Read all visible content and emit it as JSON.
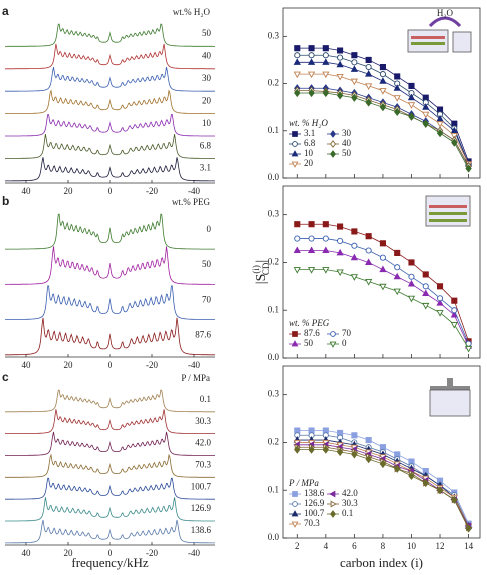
{
  "chart_data": [
    {
      "type": "spectra",
      "panel": "a",
      "legend_title": "wt.% H₂O",
      "series": [
        {
          "name": "50",
          "color": "#3d7a2e"
        },
        {
          "name": "40",
          "color": "#b03030"
        },
        {
          "name": "30",
          "color": "#3a5fb0"
        },
        {
          "name": "20",
          "color": "#a0702a"
        },
        {
          "name": "10",
          "color": "#8a2ab0"
        },
        {
          "name": "6.8",
          "color": "#4a5a2a"
        },
        {
          "name": "3.1",
          "color": "#1a1a3a"
        }
      ],
      "xlim": [
        50,
        -50
      ],
      "xticks": [
        40,
        20,
        0,
        -20,
        -40
      ]
    },
    {
      "type": "spectra",
      "panel": "b",
      "legend_title": "wt.% PEG",
      "series": [
        {
          "name": "0",
          "color": "#3d7a2e"
        },
        {
          "name": "50",
          "color": "#a020a0"
        },
        {
          "name": "70",
          "color": "#3a5fb0"
        },
        {
          "name": "87.6",
          "color": "#8a1a1a"
        }
      ],
      "xlim": [
        50,
        -50
      ],
      "xticks": [
        40,
        20,
        0,
        -20,
        -40
      ]
    },
    {
      "type": "spectra",
      "panel": "c",
      "legend_title": "P / MPa",
      "series": [
        {
          "name": "0.1",
          "color": "#a08050"
        },
        {
          "name": "30.3",
          "color": "#a03030"
        },
        {
          "name": "42.0",
          "color": "#702050"
        },
        {
          "name": "70.3",
          "color": "#8a6a30"
        },
        {
          "name": "100.7",
          "color": "#2a4a9a"
        },
        {
          "name": "126.9",
          "color": "#3a8a8a"
        },
        {
          "name": "138.6",
          "color": "#5a7aaa"
        }
      ],
      "xlim": [
        50,
        -50
      ],
      "xticks": [
        40,
        20,
        0,
        -20,
        -40
      ],
      "xlabel": "frequency/kHz"
    },
    {
      "type": "line",
      "legend_title": "wt. % H₂O",
      "legend": "lower left",
      "inset_label": "H₂O",
      "x": [
        2,
        3,
        4,
        5,
        6,
        7,
        8,
        9,
        10,
        11,
        12,
        13,
        14
      ],
      "series": [
        {
          "name": "3.1",
          "color": "#1a1a6a",
          "marker": "square",
          "filled": true,
          "values": [
            0.275,
            0.275,
            0.275,
            0.27,
            0.26,
            0.25,
            0.235,
            0.215,
            0.195,
            0.17,
            0.145,
            0.115,
            0.035
          ]
        },
        {
          "name": "6.8",
          "color": "#2a4a6a",
          "marker": "circle",
          "filled": false,
          "values": [
            0.26,
            0.26,
            0.26,
            0.255,
            0.245,
            0.235,
            0.22,
            0.2,
            0.18,
            0.16,
            0.135,
            0.105,
            0.03
          ]
        },
        {
          "name": "10",
          "color": "#1a2a7a",
          "marker": "triangle-up",
          "filled": true,
          "values": [
            0.245,
            0.245,
            0.245,
            0.24,
            0.23,
            0.22,
            0.205,
            0.19,
            0.17,
            0.15,
            0.125,
            0.1,
            0.03
          ]
        },
        {
          "name": "20",
          "color": "#c08050",
          "marker": "triangle-down",
          "filled": false,
          "values": [
            0.22,
            0.22,
            0.22,
            0.215,
            0.205,
            0.195,
            0.185,
            0.17,
            0.155,
            0.135,
            0.115,
            0.09,
            0.03
          ]
        },
        {
          "name": "30",
          "color": "#2a3a8a",
          "marker": "diamond",
          "filled": true,
          "values": [
            0.19,
            0.19,
            0.19,
            0.185,
            0.18,
            0.17,
            0.16,
            0.15,
            0.135,
            0.12,
            0.1,
            0.08,
            0.025
          ]
        },
        {
          "name": "40",
          "color": "#806030",
          "marker": "diamond",
          "filled": false,
          "values": [
            0.185,
            0.185,
            0.183,
            0.18,
            0.175,
            0.165,
            0.155,
            0.145,
            0.13,
            0.115,
            0.1,
            0.08,
            0.025
          ]
        },
        {
          "name": "50",
          "color": "#3a6a2a",
          "marker": "diamond",
          "filled": true,
          "values": [
            0.18,
            0.18,
            0.18,
            0.175,
            0.17,
            0.16,
            0.15,
            0.14,
            0.13,
            0.115,
            0.095,
            0.075,
            0.02
          ]
        }
      ],
      "xlim": [
        1,
        14.8
      ],
      "xticks": [
        2,
        4,
        6,
        8,
        10,
        12,
        14
      ],
      "ylim": [
        0,
        0.36
      ],
      "yticks": [
        {
          "value": 0,
          "label": "0.0"
        },
        0.1,
        0.2,
        0.3
      ]
    },
    {
      "type": "line",
      "legend_title": "wt. % PEG",
      "legend": "lower left",
      "ylabel": {
        "main": "|S",
        "sup": "(i)",
        "sub": "CD",
        "close": "|"
      },
      "x": [
        2,
        3,
        4,
        5,
        6,
        7,
        8,
        9,
        10,
        11,
        12,
        13,
        14
      ],
      "series": [
        {
          "name": "87.6",
          "color": "#8a1a1a",
          "marker": "square",
          "filled": true,
          "values": [
            0.28,
            0.28,
            0.28,
            0.275,
            0.265,
            0.255,
            0.24,
            0.22,
            0.2,
            0.175,
            0.15,
            0.12,
            0.035
          ]
        },
        {
          "name": "50",
          "color": "#8a2ab0",
          "marker": "triangle-up",
          "filled": true,
          "values": [
            0.225,
            0.225,
            0.225,
            0.22,
            0.21,
            0.2,
            0.185,
            0.17,
            0.155,
            0.135,
            0.115,
            0.09,
            0.025
          ]
        },
        {
          "name": "70",
          "color": "#3a5fb0",
          "marker": "circle",
          "filled": false,
          "values": [
            0.25,
            0.25,
            0.25,
            0.245,
            0.235,
            0.225,
            0.21,
            0.19,
            0.17,
            0.15,
            0.125,
            0.1,
            0.03
          ]
        },
        {
          "name": "0",
          "color": "#3d7a2e",
          "marker": "triangle-down",
          "filled": false,
          "values": [
            0.185,
            0.185,
            0.185,
            0.18,
            0.17,
            0.16,
            0.15,
            0.14,
            0.125,
            0.11,
            0.095,
            0.07,
            0.02
          ]
        }
      ],
      "xlim": [
        1,
        14.8
      ],
      "xticks": [
        2,
        4,
        6,
        8,
        10,
        12,
        14
      ],
      "ylim": [
        0,
        0.36
      ],
      "yticks": [
        {
          "value": 0,
          "label": "0.0"
        },
        0.1,
        0.2,
        0.3
      ]
    },
    {
      "type": "line",
      "legend_title": "P / MPa",
      "legend": "lower left",
      "xlabel": "carbon index (i)",
      "x": [
        2,
        3,
        4,
        5,
        6,
        7,
        8,
        9,
        10,
        11,
        12,
        13,
        14
      ],
      "series": [
        {
          "name": "138.6",
          "color": "#8aa0e0",
          "marker": "square",
          "filled": true,
          "values": [
            0.225,
            0.225,
            0.225,
            0.22,
            0.215,
            0.205,
            0.19,
            0.175,
            0.16,
            0.14,
            0.12,
            0.095,
            0.03
          ]
        },
        {
          "name": "126.9",
          "color": "#5a7aaa",
          "marker": "circle",
          "filled": false,
          "values": [
            0.215,
            0.215,
            0.215,
            0.21,
            0.2,
            0.19,
            0.18,
            0.165,
            0.15,
            0.13,
            0.11,
            0.09,
            0.025
          ]
        },
        {
          "name": "100.7",
          "color": "#1a2a6a",
          "marker": "triangle-up",
          "filled": true,
          "values": [
            0.205,
            0.205,
            0.205,
            0.2,
            0.195,
            0.185,
            0.175,
            0.16,
            0.145,
            0.13,
            0.11,
            0.085,
            0.025
          ]
        },
        {
          "name": "70.3",
          "color": "#c08050",
          "marker": "triangle-down",
          "filled": false,
          "values": [
            0.2,
            0.2,
            0.2,
            0.195,
            0.19,
            0.18,
            0.17,
            0.155,
            0.14,
            0.125,
            0.105,
            0.085,
            0.025
          ]
        },
        {
          "name": "42.0",
          "color": "#7a2a9a",
          "marker": "triangle-left",
          "filled": true,
          "values": [
            0.195,
            0.195,
            0.195,
            0.19,
            0.185,
            0.175,
            0.165,
            0.15,
            0.14,
            0.12,
            0.1,
            0.08,
            0.025
          ]
        },
        {
          "name": "30.3",
          "color": "#806030",
          "marker": "triangle-right",
          "filled": false,
          "values": [
            0.19,
            0.19,
            0.19,
            0.185,
            0.18,
            0.17,
            0.16,
            0.145,
            0.135,
            0.115,
            0.1,
            0.08,
            0.022
          ]
        },
        {
          "name": "0.1",
          "color": "#6a6a2a",
          "marker": "diamond",
          "filled": true,
          "values": [
            0.185,
            0.185,
            0.185,
            0.18,
            0.175,
            0.165,
            0.155,
            0.145,
            0.13,
            0.115,
            0.1,
            0.08,
            0.02
          ]
        }
      ],
      "xlim": [
        1,
        14.8
      ],
      "xticks": [
        2,
        4,
        6,
        8,
        10,
        12,
        14
      ],
      "ylim": [
        0,
        0.36
      ],
      "yticks": [
        {
          "value": 0,
          "label": "0.0"
        },
        0.1,
        0.2,
        0.3
      ]
    }
  ]
}
